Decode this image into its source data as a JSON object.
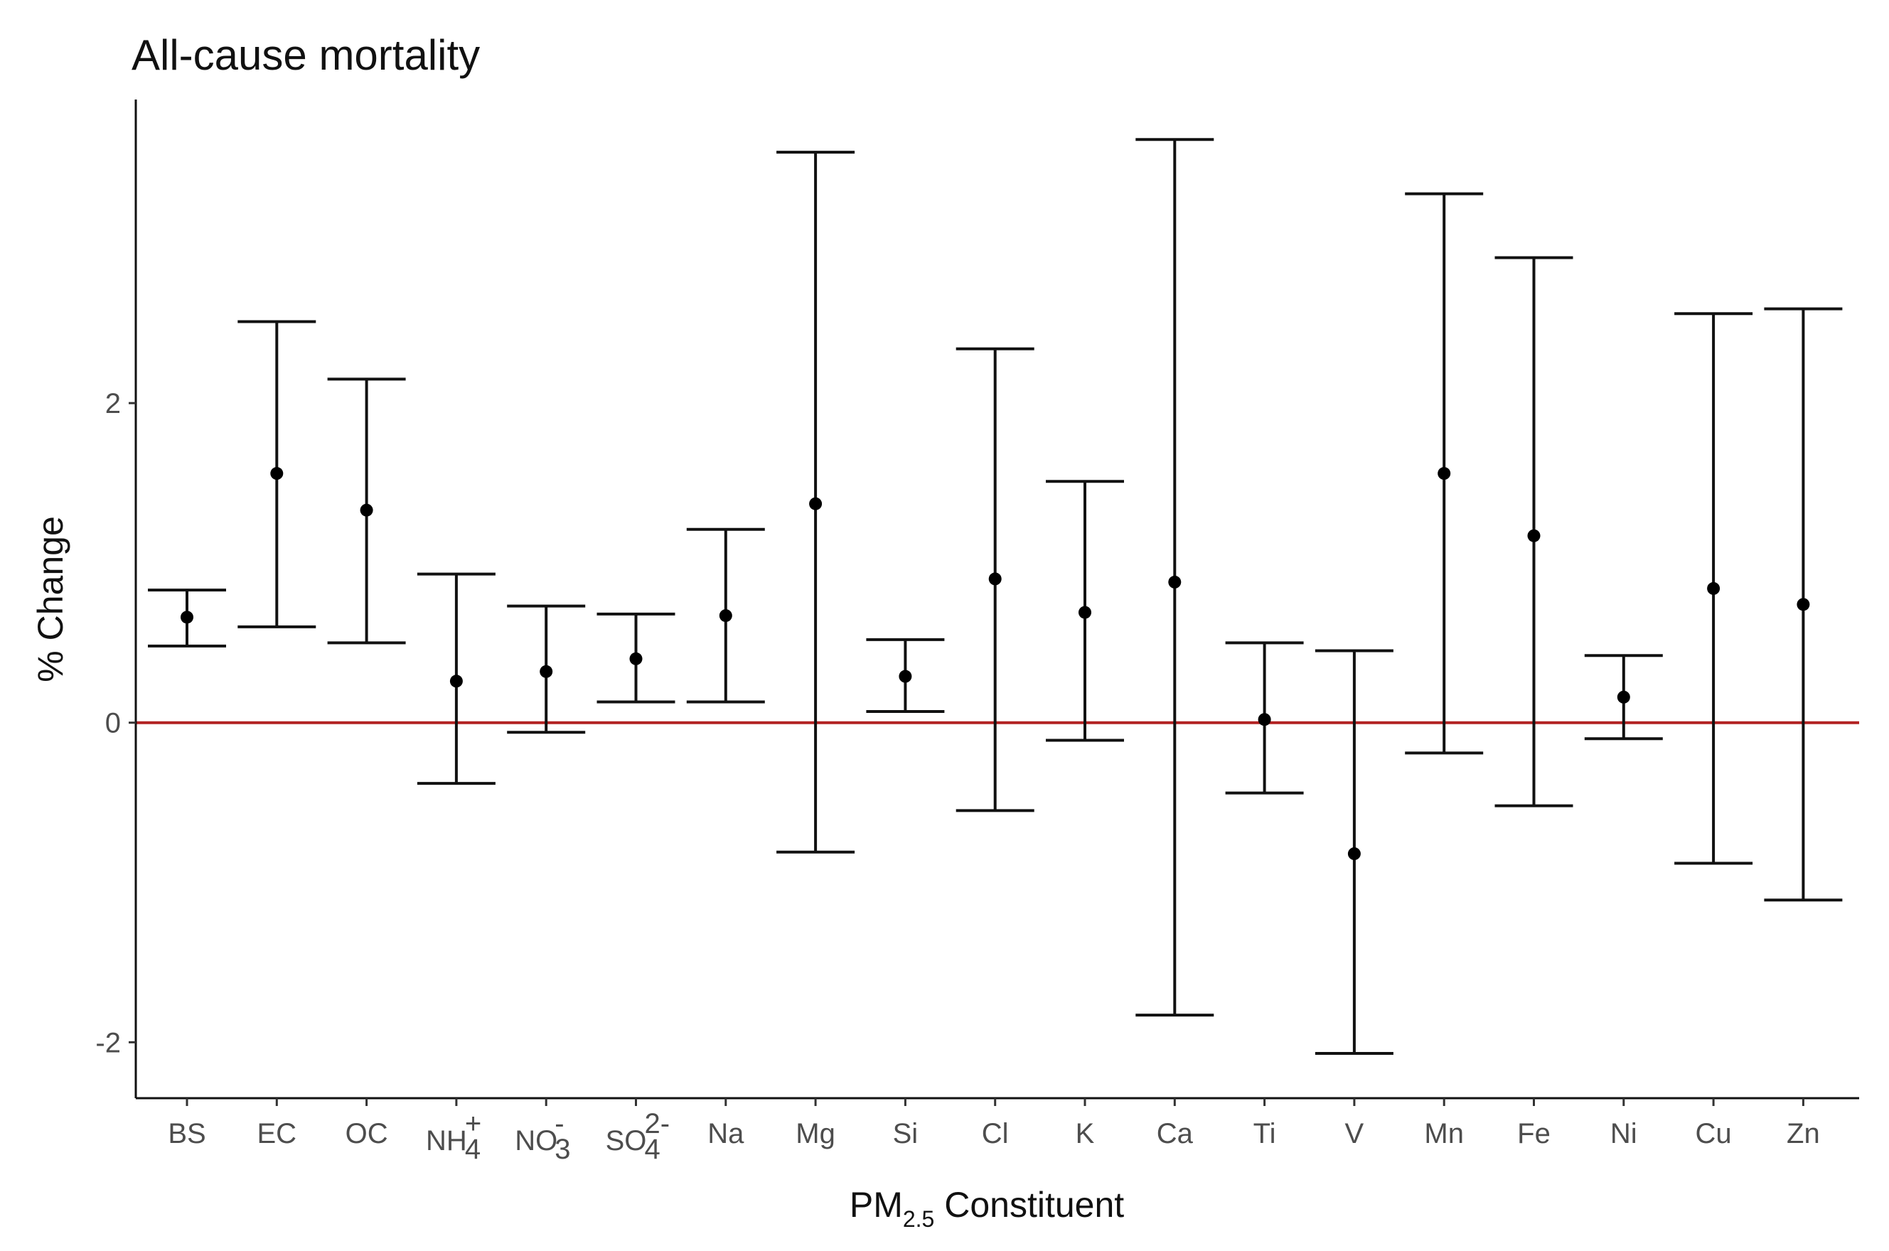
{
  "chart_data": {
    "type": "errorbar",
    "title": "All-cause mortality",
    "xlabel": {
      "main": "PM",
      "sub": "2.5",
      "rest": " Constituent"
    },
    "ylabel": "% Change",
    "ylim": [
      -2.35,
      3.9
    ],
    "yticks": [
      -2,
      0,
      2
    ],
    "ytick_labels": [
      "-2",
      "0",
      "2"
    ],
    "reference_line": {
      "y": 0,
      "color": "#b22222"
    },
    "categories": [
      {
        "base": "BS"
      },
      {
        "base": "EC"
      },
      {
        "base": "OC"
      },
      {
        "base": "NH",
        "sub": "4",
        "sup": "+"
      },
      {
        "base": "NO",
        "sub": "3",
        "sup": "-"
      },
      {
        "base": "SO",
        "sub": "4",
        "sup": "2-"
      },
      {
        "base": "Na"
      },
      {
        "base": "Mg"
      },
      {
        "base": "Si"
      },
      {
        "base": "Cl"
      },
      {
        "base": "K"
      },
      {
        "base": "Ca"
      },
      {
        "base": "Ti"
      },
      {
        "base": "V"
      },
      {
        "base": "Mn"
      },
      {
        "base": "Fe"
      },
      {
        "base": "Ni"
      },
      {
        "base": "Cu"
      },
      {
        "base": "Zn"
      }
    ],
    "estimate": [
      0.66,
      1.56,
      1.33,
      0.26,
      0.32,
      0.4,
      0.67,
      1.37,
      0.29,
      0.9,
      0.69,
      0.88,
      0.02,
      -0.82,
      1.56,
      1.17,
      0.16,
      0.84,
      0.74
    ],
    "lower": [
      0.48,
      0.6,
      0.5,
      -0.38,
      -0.06,
      0.13,
      0.13,
      -0.81,
      0.07,
      -0.55,
      -0.11,
      -1.83,
      -0.44,
      -2.07,
      -0.19,
      -0.52,
      -0.1,
      -0.88,
      -1.11
    ],
    "upper": [
      0.83,
      2.51,
      2.15,
      0.93,
      0.73,
      0.68,
      1.21,
      3.57,
      0.52,
      2.34,
      1.51,
      3.65,
      0.5,
      0.45,
      3.31,
      2.91,
      0.42,
      2.56,
      2.59
    ]
  }
}
